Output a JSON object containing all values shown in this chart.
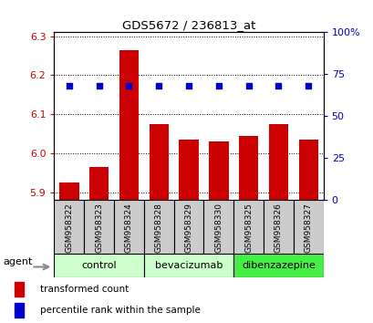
{
  "title": "GDS5672 / 236813_at",
  "samples": [
    "GSM958322",
    "GSM958323",
    "GSM958324",
    "GSM958328",
    "GSM958329",
    "GSM958330",
    "GSM958325",
    "GSM958326",
    "GSM958327"
  ],
  "bar_values": [
    5.925,
    5.965,
    6.265,
    6.075,
    6.035,
    6.03,
    6.045,
    6.075,
    6.035
  ],
  "percentile_values": [
    68,
    68,
    68,
    68,
    68,
    68,
    68,
    68,
    68
  ],
  "ylim_left": [
    5.88,
    6.31
  ],
  "ylim_right": [
    0,
    100
  ],
  "yticks_left": [
    5.9,
    6.0,
    6.1,
    6.2,
    6.3
  ],
  "yticks_right": [
    0,
    25,
    50,
    75,
    100
  ],
  "bar_color": "#cc0000",
  "dot_color": "#0000cc",
  "groups": [
    {
      "label": "control",
      "indices": [
        0,
        1,
        2
      ],
      "color": "#ccffcc"
    },
    {
      "label": "bevacizumab",
      "indices": [
        3,
        4,
        5
      ],
      "color": "#ccffcc"
    },
    {
      "label": "dibenzazepine",
      "indices": [
        6,
        7,
        8
      ],
      "color": "#44ee44"
    }
  ],
  "legend_bar_label": "transformed count",
  "legend_dot_label": "percentile rank within the sample",
  "agent_label": "agent",
  "tick_label_color_left": "#cc0000",
  "tick_label_color_right": "#0000cc",
  "sample_box_color": "#cccccc",
  "agent_arrow_color": "#888888"
}
